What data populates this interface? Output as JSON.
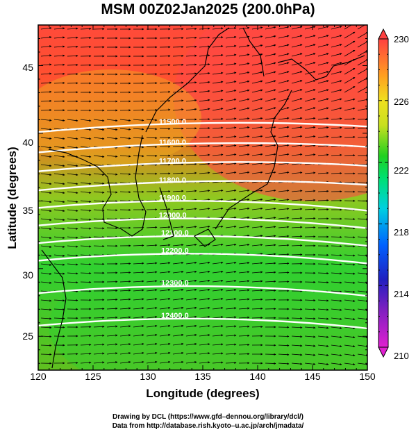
{
  "title": "MSM 00Z02Jan2025 (200.0hPa)",
  "xlabel": "Longitude (degrees)",
  "ylabel": "Latitude  (degrees)",
  "credits": [
    "Drawing by DCL (https://www.gfd–dennou.org/library/dcl/)",
    "Data from http://database.rish.kyoto–u.ac.jp/arch/jmadata/"
  ],
  "x_ticks": [
    "120",
    "125",
    "130",
    "135",
    "140",
    "145",
    "150"
  ],
  "y_ticks": [
    "25",
    "30",
    "35",
    "40",
    "45"
  ],
  "colorbar": {
    "ticks": [
      "210",
      "214",
      "218",
      "222",
      "226",
      "230"
    ],
    "min": 210,
    "max": 230,
    "colors": [
      "#e020d0",
      "#2020c0",
      "#00a0ff",
      "#00e0a0",
      "#20d020",
      "#c8e020",
      "#ffff00",
      "#ffa020",
      "#ff4040"
    ]
  },
  "map": {
    "lon_range": [
      120,
      150
    ],
    "lat_range": [
      22.5,
      48
    ],
    "contours": [
      {
        "label": "11500.0",
        "lat": 40.6
      },
      {
        "label": "11600.0",
        "lat": 39.1
      },
      {
        "label": "11700.0",
        "lat": 37.7
      },
      {
        "label": "11800.0",
        "lat": 36.3
      },
      {
        "label": "11900.0",
        "lat": 35.0
      },
      {
        "label": "12000.0",
        "lat": 33.7
      },
      {
        "label": "12100.0",
        "lat": 32.4
      },
      {
        "label": "12200.0",
        "lat": 31.1
      },
      {
        "label": "12300.0",
        "lat": 28.7
      },
      {
        "label": "12400.0",
        "lat": 26.3
      }
    ]
  }
}
